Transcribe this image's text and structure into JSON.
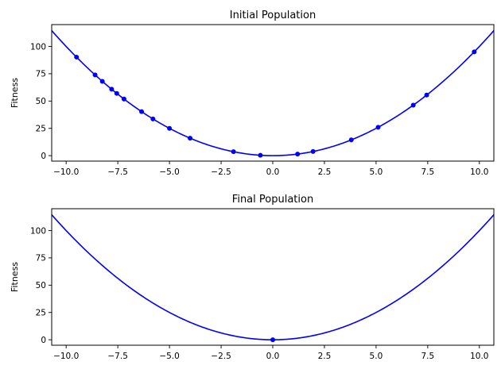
{
  "chart_data": [
    {
      "type": "scatter",
      "title": "Initial Population",
      "xlabel": "",
      "ylabel": "Fitness",
      "xlim": [
        -10.7,
        10.7
      ],
      "ylim": [
        -5,
        120
      ],
      "xticks": [
        "−10.0",
        "−7.5",
        "−5.0",
        "−2.5",
        "0.0",
        "2.5",
        "5.0",
        "7.5",
        "10.0"
      ],
      "yticks": [
        "0",
        "25",
        "50",
        "75",
        "100"
      ],
      "curve": {
        "function": "x^2",
        "color": "#0000ff"
      },
      "color": "#0000ff",
      "points": [
        {
          "x": -9.5,
          "y": 90.25
        },
        {
          "x": -8.6,
          "y": 73.96
        },
        {
          "x": -8.25,
          "y": 68.06
        },
        {
          "x": -7.8,
          "y": 60.84
        },
        {
          "x": -7.55,
          "y": 57.0
        },
        {
          "x": -7.2,
          "y": 51.84
        },
        {
          "x": -6.35,
          "y": 40.32
        },
        {
          "x": -5.8,
          "y": 33.64
        },
        {
          "x": -5.0,
          "y": 25.0
        },
        {
          "x": -4.0,
          "y": 16.0
        },
        {
          "x": -1.9,
          "y": 3.61
        },
        {
          "x": -0.6,
          "y": 0.36
        },
        {
          "x": 1.2,
          "y": 1.44
        },
        {
          "x": 1.95,
          "y": 3.8
        },
        {
          "x": 3.8,
          "y": 14.44
        },
        {
          "x": 5.1,
          "y": 26.01
        },
        {
          "x": 6.8,
          "y": 46.24
        },
        {
          "x": 7.45,
          "y": 55.5
        },
        {
          "x": 9.75,
          "y": 95.06
        }
      ]
    },
    {
      "type": "scatter",
      "title": "Final Population",
      "xlabel": "",
      "ylabel": "Fitness",
      "xlim": [
        -10.7,
        10.7
      ],
      "ylim": [
        -5,
        120
      ],
      "xticks": [
        "−10.0",
        "−7.5",
        "−5.0",
        "−2.5",
        "0.0",
        "2.5",
        "5.0",
        "7.5",
        "10.0"
      ],
      "yticks": [
        "0",
        "25",
        "50",
        "75",
        "100"
      ],
      "curve": {
        "function": "x^2",
        "color": "#0000ff"
      },
      "color": "#0000ff",
      "points": [
        {
          "x": 0.0,
          "y": 0.0
        }
      ]
    }
  ]
}
